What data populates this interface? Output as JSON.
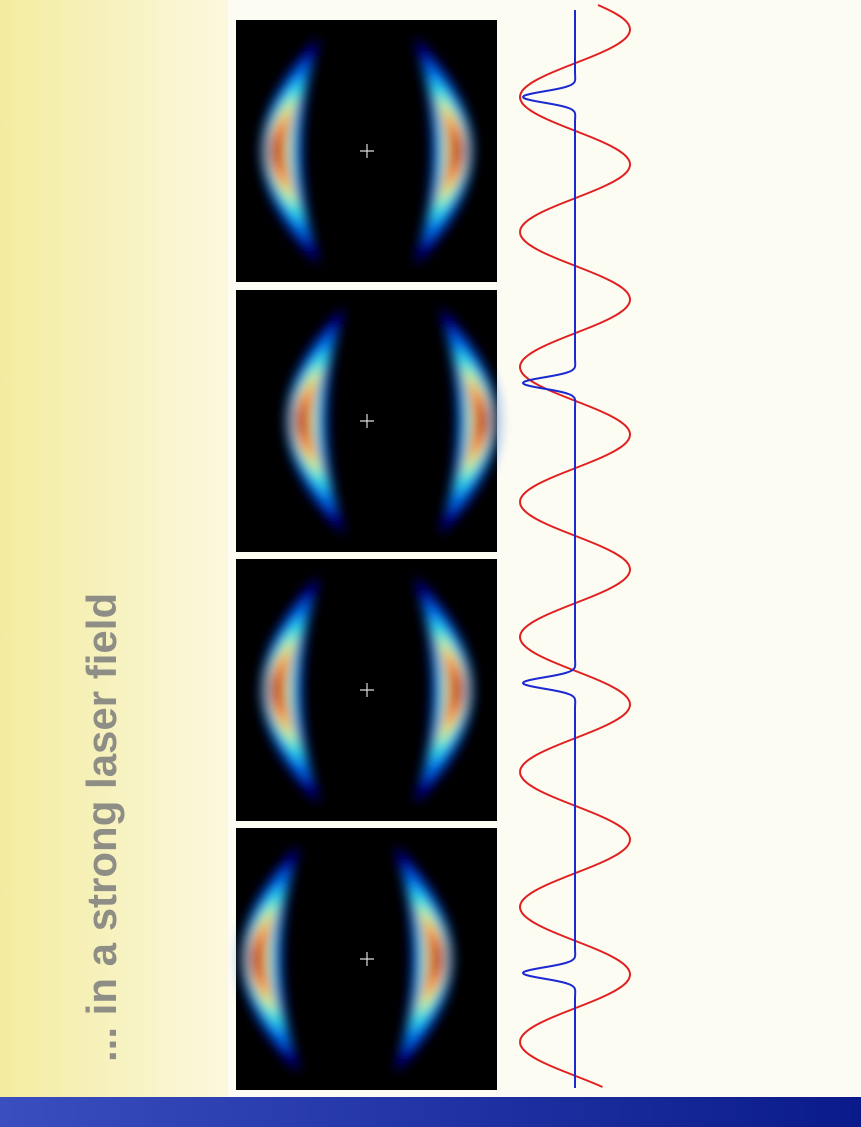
{
  "title": "... in a strong laser field"
}
